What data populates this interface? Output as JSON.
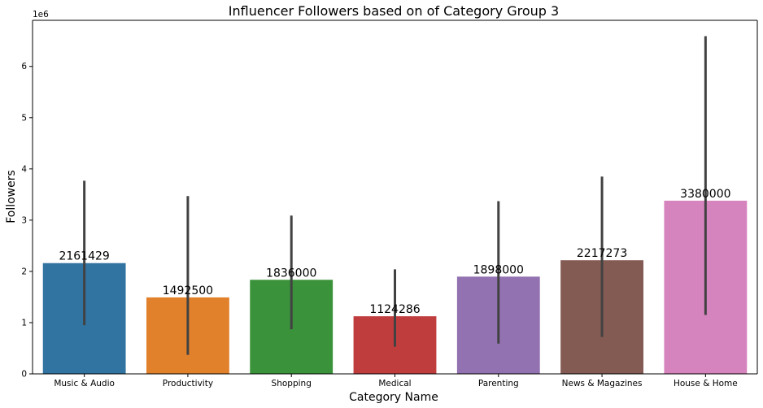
{
  "chart_data": {
    "type": "bar",
    "title": "Influencer Followers based on of Category Group 3",
    "xlabel": "Category Name",
    "ylabel": "Followers",
    "y_offset_label": "1e6",
    "ylim": [
      0,
      6900000
    ],
    "yticks": [
      0,
      1,
      2,
      3,
      4,
      5,
      6
    ],
    "y_scale": 1000000,
    "grid": false,
    "categories": [
      "Music & Audio",
      "Productivity",
      "Shopping",
      "Medical",
      "Parenting",
      "News & Magazines",
      "House & Home"
    ],
    "values": [
      2161429,
      1492500,
      1836000,
      1124286,
      1898000,
      2217273,
      3380000
    ],
    "value_labels": [
      "2161429",
      "1492500",
      "1836000",
      "1124286",
      "1898000",
      "2217273",
      "3380000"
    ],
    "error_low": [
      950000,
      370000,
      870000,
      530000,
      590000,
      720000,
      1150000
    ],
    "error_high": [
      3770000,
      3470000,
      3090000,
      2040000,
      3370000,
      3850000,
      6590000
    ],
    "colors": [
      "#3274a1",
      "#e1812c",
      "#3a923a",
      "#c03d3e",
      "#9372b2",
      "#845b53",
      "#d684bd"
    ],
    "error_color": "#424242"
  }
}
